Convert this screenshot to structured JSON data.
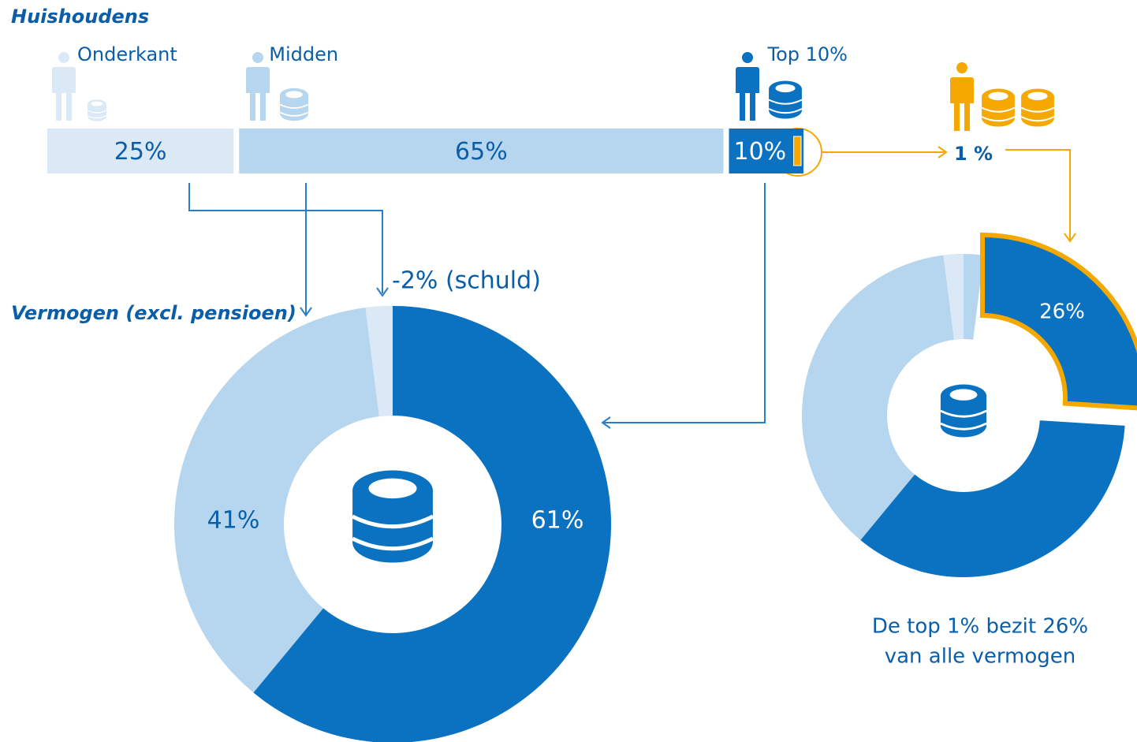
{
  "chart_data": [
    {
      "type": "bar",
      "title": "Huishoudens",
      "categories": [
        "Onderkant",
        "Midden",
        "Top 10%"
      ],
      "values": [
        25,
        65,
        10
      ],
      "value_labels": [
        "25%",
        "65%",
        "10%"
      ],
      "colors": [
        "#dbe9f6",
        "#b5d6ee",
        "#0a72c0"
      ],
      "highlight": {
        "value": 1,
        "label": "1 %",
        "color": "#f5a800"
      }
    },
    {
      "type": "donut",
      "title": "Vermogen (excl. pensioen)",
      "values": [
        61,
        41,
        -2
      ],
      "value_labels": [
        "61%",
        "41%",
        "-2% (schuld)"
      ],
      "colors": [
        "#0a72c0",
        "#b5d6ee",
        "#dbe9f6"
      ]
    },
    {
      "type": "donut",
      "values": [
        61,
        41,
        -2
      ],
      "colors": [
        "#0a72c0",
        "#b5d6ee",
        "#dbe9f6"
      ],
      "highlight": {
        "value": 26,
        "label": "26%",
        "color": "#f5a800"
      },
      "caption": [
        "De top 1% bezit 26%",
        "van alle vermogen"
      ]
    }
  ]
}
